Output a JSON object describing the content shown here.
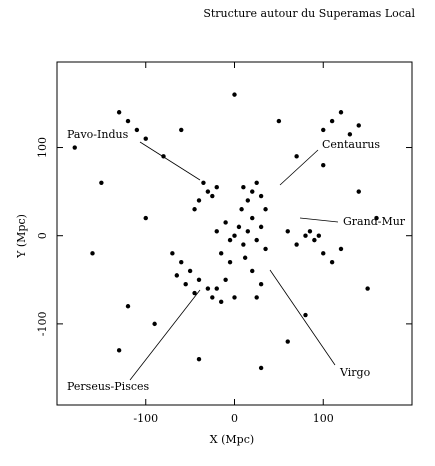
{
  "chart_data": {
    "type": "scatter",
    "title": "Structure autour du Superamas Local",
    "x_label": "X (Mpc)",
    "y_label": "Y (Mpc)",
    "xlim": [
      -200,
      200
    ],
    "ylim": [
      -192,
      197
    ],
    "xticks": [
      -100,
      0,
      100
    ],
    "yticks": [
      -100,
      0,
      100
    ],
    "color": "#000000",
    "x": [
      0,
      5,
      -5,
      10,
      15,
      -10,
      20,
      -15,
      25,
      8,
      -20,
      30,
      12,
      -5,
      35,
      -30,
      -35,
      -25,
      -40,
      -20,
      -45,
      20,
      25,
      15,
      30,
      10,
      35,
      -40,
      -50,
      -30,
      -60,
      -45,
      -70,
      -25,
      -55,
      -65,
      -20,
      -15,
      -10,
      0,
      20,
      30,
      25,
      80,
      90,
      85,
      95,
      100,
      110,
      70,
      60,
      120,
      -130,
      -120,
      -110,
      -100,
      120,
      110,
      100,
      130,
      140,
      -150,
      -120,
      -90,
      150,
      140,
      -80,
      60,
      -40,
      30,
      -160,
      160,
      70,
      -60,
      50,
      -100,
      100,
      -130,
      80,
      0,
      -180
    ],
    "y": [
      0,
      10,
      -5,
      -10,
      5,
      15,
      20,
      -20,
      -5,
      30,
      5,
      10,
      -25,
      -30,
      -15,
      50,
      60,
      45,
      40,
      55,
      30,
      50,
      60,
      40,
      45,
      55,
      30,
      -50,
      -40,
      -60,
      -30,
      -65,
      -20,
      -70,
      -55,
      -45,
      -60,
      -75,
      -50,
      -70,
      -40,
      -55,
      -70,
      0,
      -5,
      5,
      0,
      -20,
      -30,
      -10,
      5,
      -15,
      140,
      130,
      120,
      110,
      140,
      130,
      120,
      115,
      125,
      60,
      -80,
      -100,
      -60,
      50,
      90,
      -120,
      -140,
      -150,
      -20,
      20,
      90,
      120,
      130,
      20,
      80,
      -130,
      -90,
      160,
      100
    ],
    "annotations": [
      "Pavo-Indus",
      "Centaurus",
      "Grand-Mur",
      "Virgo",
      "Perseus-Pisces"
    ]
  }
}
